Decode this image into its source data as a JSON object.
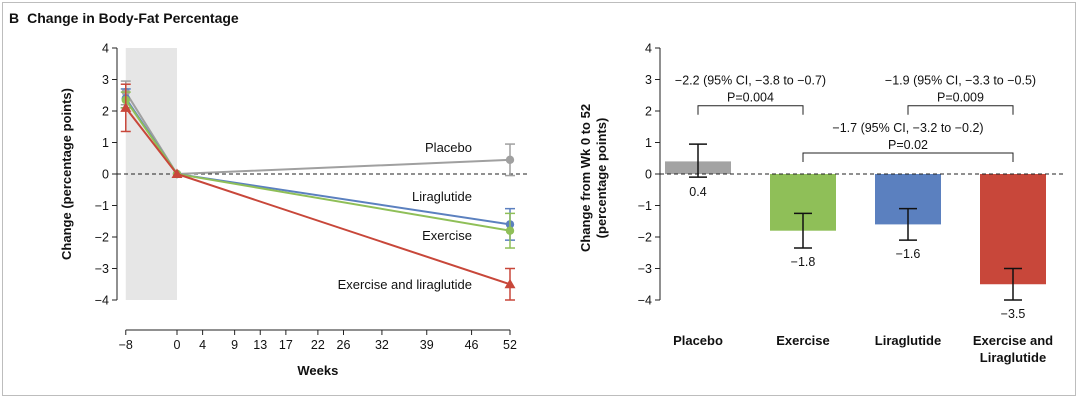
{
  "figure": {
    "panel_letter": "B",
    "panel_title": "Change in Body-Fat Percentage"
  },
  "chart_data": [
    {
      "type": "line",
      "title": "Change in Body-Fat Percentage",
      "xlabel": "Weeks",
      "ylabel": "Change (percentage points)",
      "ylim": [
        -4,
        4
      ],
      "yticks": [
        "4",
        "3",
        "2",
        "1",
        "0",
        "−1",
        "−2",
        "−3",
        "−4"
      ],
      "ytick_values": [
        4,
        3,
        2,
        1,
        0,
        -1,
        -2,
        -3,
        -4
      ],
      "xticks": [
        "−8",
        "0",
        "4",
        "9",
        "13",
        "17",
        "22",
        "26",
        "32",
        "39",
        "46",
        "52"
      ],
      "xtick_values": [
        -8,
        0,
        4,
        9,
        13,
        17,
        22,
        26,
        32,
        39,
        46,
        52
      ],
      "shaded_range": [
        -8,
        0
      ],
      "x": [
        -8,
        0,
        52
      ],
      "series": [
        {
          "name": "Placebo",
          "color": "#a0a0a0",
          "marker": "circle",
          "values": [
            2.6,
            0,
            0.45
          ],
          "ci_low": [
            2.2,
            0,
            -0.05
          ],
          "ci_high": [
            2.95,
            0,
            0.95
          ]
        },
        {
          "name": "Liraglutide",
          "color": "#5b80bf",
          "marker": "circle",
          "values": [
            2.4,
            0,
            -1.6
          ],
          "ci_low": [
            2.1,
            0,
            -2.1
          ],
          "ci_high": [
            2.7,
            0,
            -1.1
          ]
        },
        {
          "name": "Exercise",
          "color": "#8fbf58",
          "marker": "circle",
          "values": [
            2.35,
            0,
            -1.8
          ],
          "ci_low": [
            2.1,
            0,
            -2.35
          ],
          "ci_high": [
            2.6,
            0,
            -1.25
          ]
        },
        {
          "name": "Exercise and liraglutide",
          "color": "#c8473a",
          "marker": "triangle",
          "values": [
            2.1,
            0,
            -3.5
          ],
          "ci_low": [
            1.35,
            0,
            -4.0
          ],
          "ci_high": [
            2.85,
            0,
            -3.0
          ]
        }
      ]
    },
    {
      "type": "bar",
      "ylabel": "Change from Wk 0 to 52 (percentage points)",
      "ylabel_lines": [
        "Change from Wk 0 to 52",
        "(percentage points)"
      ],
      "ylim": [
        -4,
        4
      ],
      "yticks": [
        "4",
        "3",
        "2",
        "1",
        "0",
        "−1",
        "−2",
        "−3",
        "−4"
      ],
      "ytick_values": [
        4,
        3,
        2,
        1,
        0,
        -1,
        -2,
        -3,
        -4
      ],
      "categories": [
        {
          "lines": [
            "Placebo"
          ],
          "value": 0.4,
          "value_label": "0.4",
          "ci_low": -0.1,
          "ci_high": 0.95,
          "color": "#a3a3a3"
        },
        {
          "lines": [
            "Exercise"
          ],
          "value": -1.8,
          "value_label": "−1.8",
          "ci_low": -2.35,
          "ci_high": -1.25,
          "color": "#8fbf58"
        },
        {
          "lines": [
            "Liraglutide"
          ],
          "value": -1.6,
          "value_label": "−1.6",
          "ci_low": -2.1,
          "ci_high": -1.1,
          "color": "#5b80bf"
        },
        {
          "lines": [
            "Exercise and",
            "Liraglutide"
          ],
          "value": -3.5,
          "value_label": "−3.5",
          "ci_low": -4.0,
          "ci_high": -3.0,
          "color": "#c8473a"
        }
      ],
      "comparisons": [
        {
          "from": 0,
          "to": 1,
          "bracket_y": 2.2,
          "text": "−2.2 (95% CI, −3.8 to −0.7)",
          "p": "P=0.004"
        },
        {
          "from": 2,
          "to": 3,
          "bracket_y": 2.2,
          "text": "−1.9 (95% CI, −3.3 to −0.5)",
          "p": "P=0.009"
        },
        {
          "from": 1,
          "to": 3,
          "bracket_y": 0.7,
          "text": "−1.7 (95% CI, −3.2 to −0.2)",
          "p": "P=0.02"
        }
      ]
    }
  ]
}
